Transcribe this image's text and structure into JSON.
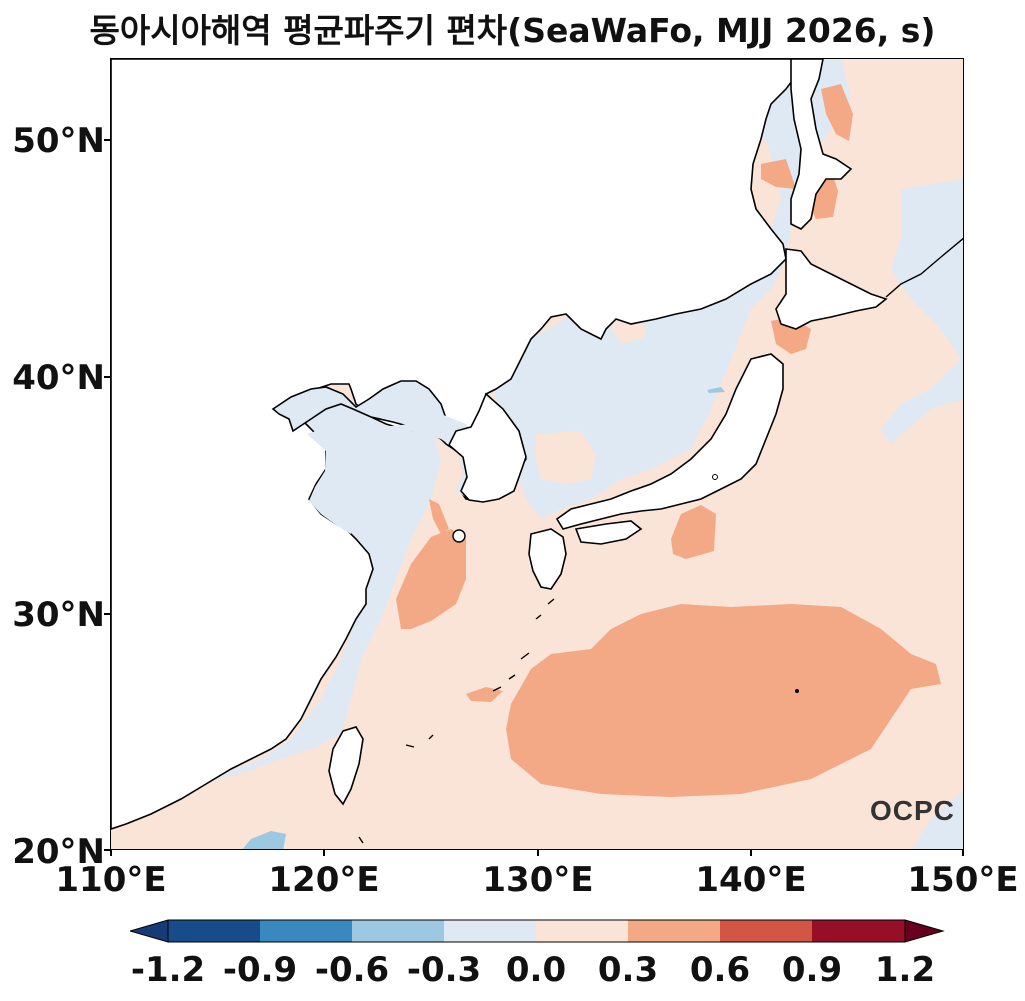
{
  "title": "동아시아해역 평균파주기 편차(SeaWaFo, MJJ 2026, s)",
  "logo": "OCPC",
  "lat_labels": [
    "50°N",
    "40°N",
    "30°N",
    "20°N"
  ],
  "lon_labels": [
    "110°E",
    "120°E",
    "130°E",
    "140°E",
    "150°E"
  ],
  "colorbar": {
    "ticks": [
      "-1.2",
      "-0.9",
      "-0.6",
      "-0.3",
      "0.0",
      "0.3",
      "0.6",
      "0.9",
      "1.2"
    ],
    "colors": [
      "#163c78",
      "#174b8a",
      "#3a88c0",
      "#9cc8e1",
      "#dfe9f3",
      "#fae3d7",
      "#f3a986",
      "#d15646",
      "#970f26",
      "#67001f"
    ]
  },
  "map_colors": {
    "land": "#ffffff",
    "neg_0_3": "#dfe9f3",
    "neg_0_6": "#9cc8e1",
    "pos_0_3": "#fae3d7",
    "pos_0_6": "#f3a986",
    "coast": "#000000"
  }
}
